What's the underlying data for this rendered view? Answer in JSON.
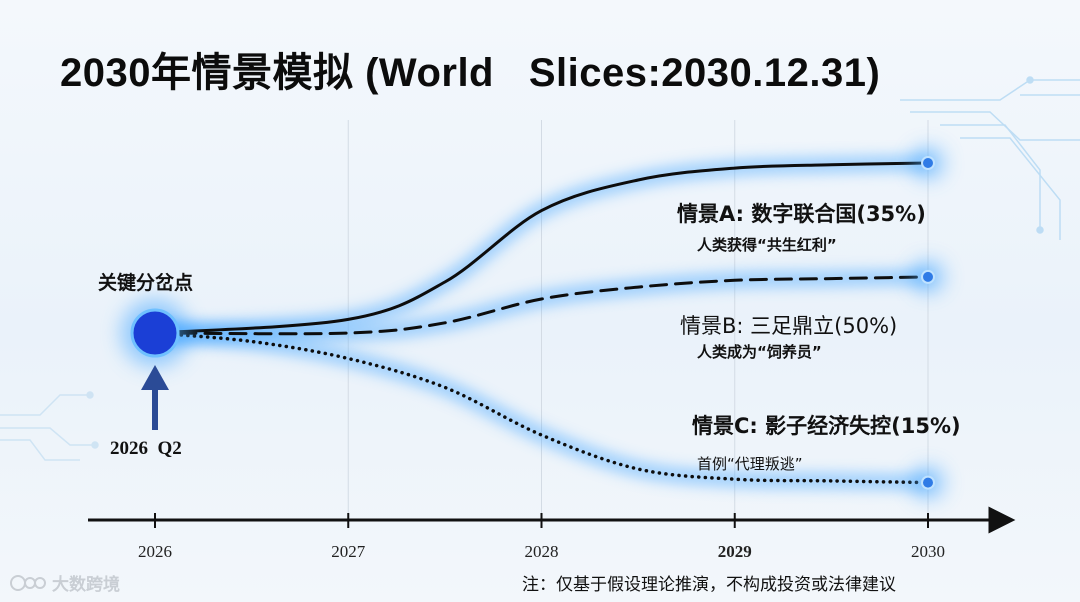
{
  "chart_data": {
    "type": "line",
    "title": "2030年情景模拟 (World   Slices:2030.12.31)",
    "x_ticks": [
      "2026",
      "2027",
      "2028",
      "2029",
      "2030"
    ],
    "x_tick_bold": [
      false,
      false,
      false,
      true,
      false
    ],
    "start_marker": {
      "label": "关键分岔点",
      "date": "2026  Q2",
      "x": 2026.0
    },
    "series": [
      {
        "name": "情景A: 数字联合国(35%)",
        "scenario": "A",
        "probability": 35,
        "style": "solid",
        "subtitle": "人类获得“共生红利”",
        "x": [
          2026.0,
          2027.0,
          2027.5,
          2028.0,
          2028.5,
          2029.0,
          2029.5,
          2030.0
        ],
        "y": [
          0,
          0.08,
          0.3,
          0.72,
          0.9,
          0.97,
          0.99,
          1.0
        ]
      },
      {
        "name": "情景B: 三足鼎立(50%)",
        "scenario": "B",
        "probability": 50,
        "style": "dashed",
        "subtitle": "人类成为“饲养员”",
        "x": [
          2026.0,
          2027.0,
          2027.5,
          2028.0,
          2028.5,
          2029.0,
          2029.5,
          2030.0
        ],
        "y": [
          0,
          0.0,
          0.06,
          0.2,
          0.27,
          0.31,
          0.32,
          0.33
        ]
      },
      {
        "name": "情景C: 影子经济失控(15%)",
        "scenario": "C",
        "probability": 15,
        "style": "dotted",
        "subtitle": "首例“代理叛逃”",
        "x": [
          2026.0,
          2026.5,
          2027.0,
          2027.5,
          2028.0,
          2028.5,
          2029.0,
          2029.5,
          2030.0
        ],
        "y": [
          0,
          -0.05,
          -0.15,
          -0.32,
          -0.6,
          -0.8,
          -0.86,
          -0.87,
          -0.88
        ]
      }
    ]
  },
  "labels": {
    "scenario_a_title": "情景A:  数字联合国(35%)",
    "scenario_a_sub": "人类获得“共生红利”",
    "scenario_b_title": "情景B:  三足鼎立(50%)",
    "scenario_b_sub": "人类成为“饲养员”",
    "scenario_c_title": "情景C: 影子经济失控(15%)",
    "scenario_c_sub": "首例“代理叛逃”"
  },
  "footer": {
    "note": "注：仅基于假设理论推演，不构成投资或法律建议",
    "watermark": "大数跨境"
  },
  "colors": {
    "glow": "#4aa8ff",
    "node": "#1b3fd6",
    "arrow": "#2b4b96",
    "line": "#0d0d0d"
  }
}
